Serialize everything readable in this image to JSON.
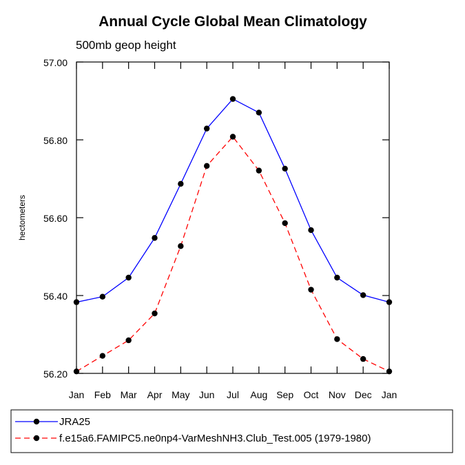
{
  "chart_data": {
    "type": "line",
    "title": "Annual Cycle Global Mean Climatology",
    "subtitle": "500mb geop height",
    "ylabel": "hectometers",
    "categories": [
      "Jan",
      "Feb",
      "Mar",
      "Apr",
      "May",
      "Jun",
      "Jul",
      "Aug",
      "Sep",
      "Oct",
      "Nov",
      "Dec",
      "Jan"
    ],
    "ylim": [
      56.2,
      57.0
    ],
    "yticks": [
      "56.20",
      "56.40",
      "56.60",
      "56.80",
      "57.00"
    ],
    "series": [
      {
        "name": "JRA25",
        "color": "#0000ff",
        "dash": "solid",
        "values": [
          56.383,
          56.397,
          56.446,
          56.548,
          56.687,
          56.829,
          56.905,
          56.87,
          56.726,
          56.568,
          56.446,
          56.401,
          56.383
        ]
      },
      {
        "name": "f.e15a6.FAMIPC5.ne0np4-VarMeshNH3.Club_Test.005 (1979-1980)",
        "color": "#ff0000",
        "dash": "dashed",
        "values": [
          56.205,
          56.245,
          56.285,
          56.354,
          56.527,
          56.733,
          56.808,
          56.721,
          56.586,
          56.415,
          56.288,
          56.237,
          56.205
        ]
      }
    ],
    "grid": false,
    "legend": "bottom"
  }
}
